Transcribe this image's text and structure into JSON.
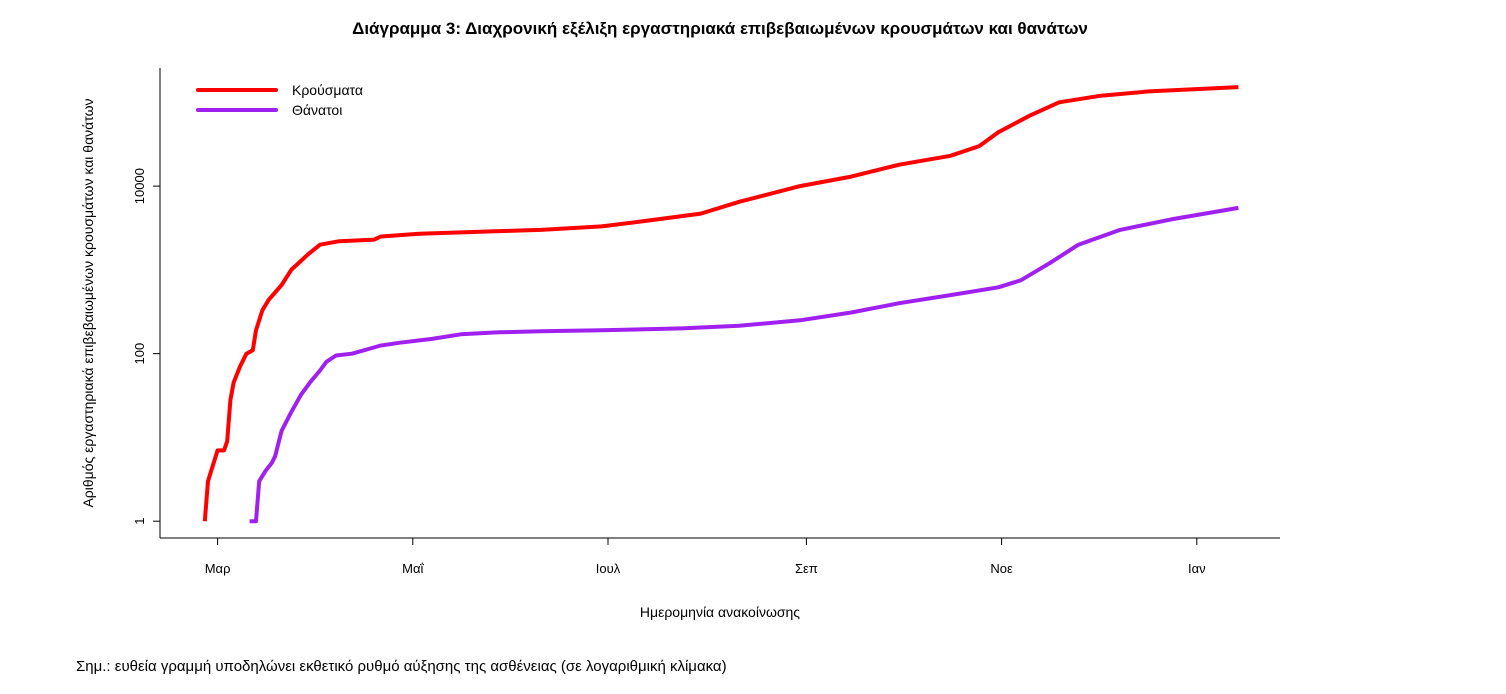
{
  "chart_data": {
    "type": "line",
    "title": "Διάγραμμα 3: Διαχρονική εξέλιξη εργαστηριακά επιβεβαιωμένων κρουσμάτων και θανάτων",
    "xlabel": "Ημερομηνία ανακοίνωσης",
    "ylabel": "Αριθμός εργαστηριακά επιβεβαιωμένων κρουσμάτων και θανάτων",
    "note": "Σημ.: ευθεία γραμμή υποδηλώνει εκθετικό ρυθμό αύξησης της ασθένειας (σε λογαριθμική κλίμακα)",
    "x_unit": "days since 2020-03-01",
    "xlim": [
      -18,
      332
    ],
    "y_scale": "log10",
    "ylim": [
      0.63,
      257000
    ],
    "x_ticks": [
      {
        "value": 0,
        "label": "Μαρ"
      },
      {
        "value": 61,
        "label": "Μαΐ"
      },
      {
        "value": 122,
        "label": "Ιουλ"
      },
      {
        "value": 184,
        "label": "Σεπ"
      },
      {
        "value": 245,
        "label": "Νοε"
      },
      {
        "value": 306,
        "label": "Ιαν"
      }
    ],
    "y_ticks": [
      {
        "value": 1,
        "label": "1"
      },
      {
        "value": 100,
        "label": "100"
      },
      {
        "value": 10000,
        "label": "10000"
      }
    ],
    "legend_position": "top-left",
    "series": [
      {
        "name": "Κρούσματα",
        "color": "#ff0000",
        "x": [
          -4,
          -3,
          -2,
          0,
          2,
          3,
          4,
          5,
          7,
          9,
          11,
          12,
          14,
          16,
          20,
          23,
          28,
          32,
          38,
          49,
          51,
          63,
          88,
          101,
          120,
          135,
          151,
          163,
          182,
          198,
          213,
          229,
          238,
          244,
          254,
          263,
          276,
          291,
          319
        ],
        "y": [
          1,
          3,
          4,
          7,
          7,
          9,
          28,
          45,
          70,
          100,
          110,
          190,
          330,
          440,
          660,
          1000,
          1500,
          2000,
          2200,
          2300,
          2500,
          2700,
          2900,
          3000,
          3300,
          3900,
          4700,
          6500,
          10000,
          13000,
          18000,
          23000,
          30000,
          44000,
          70000,
          100000,
          120000,
          135000,
          152000
        ]
      },
      {
        "name": "Θάνατοι",
        "color": "#a020f0",
        "x": [
          10,
          12,
          13,
          15,
          17,
          18,
          20,
          23,
          26,
          29,
          32,
          34,
          37,
          42,
          51,
          57,
          67,
          76,
          88,
          101,
          120,
          145,
          163,
          182,
          198,
          213,
          229,
          244,
          251,
          260,
          269,
          282,
          298,
          319
        ],
        "y": [
          1,
          1,
          3,
          4,
          5,
          6,
          12,
          20,
          32,
          46,
          63,
          80,
          95,
          100,
          125,
          135,
          150,
          170,
          180,
          185,
          190,
          200,
          215,
          250,
          310,
          400,
          500,
          620,
          750,
          1200,
          2000,
          3000,
          4000,
          5500
        ]
      }
    ]
  }
}
